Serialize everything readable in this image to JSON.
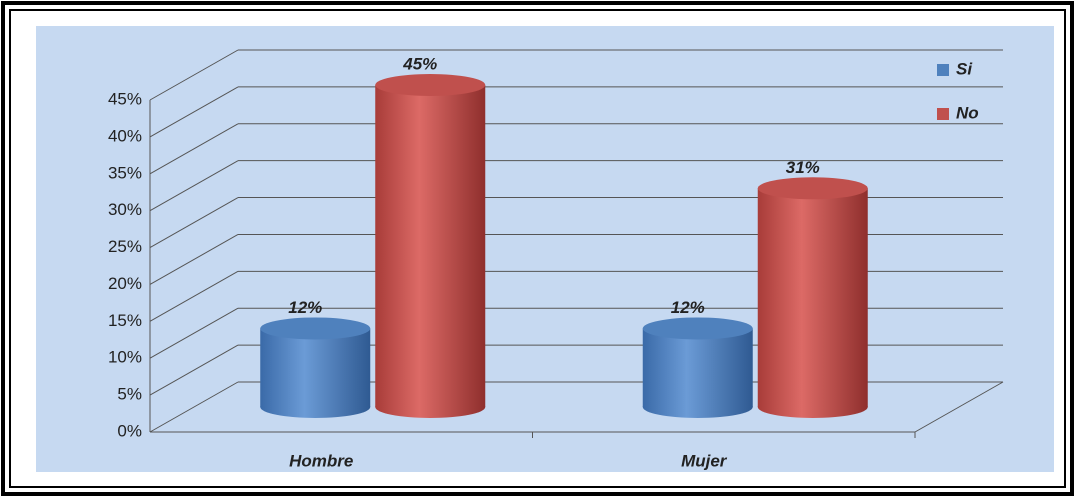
{
  "chart_data": {
    "type": "bar3d",
    "categories": [
      "Hombre",
      "Mujer"
    ],
    "series": [
      {
        "name": "Si",
        "color": "#4f81bd",
        "values": [
          12,
          12
        ],
        "value_labels": [
          "12%",
          "12%"
        ]
      },
      {
        "name": "No",
        "color": "#c0504d",
        "values": [
          45,
          31
        ],
        "value_labels": [
          "45%",
          "31%"
        ]
      }
    ],
    "ylim": [
      0,
      45
    ],
    "yticks": [
      {
        "value": 0,
        "label": "0%"
      },
      {
        "value": 5,
        "label": "5%"
      },
      {
        "value": 10,
        "label": "10%"
      },
      {
        "value": 15,
        "label": "15%"
      },
      {
        "value": 20,
        "label": "20%"
      },
      {
        "value": 25,
        "label": "25%"
      },
      {
        "value": 30,
        "label": "30%"
      },
      {
        "value": 35,
        "label": "35%"
      },
      {
        "value": 40,
        "label": "40%"
      },
      {
        "value": 45,
        "label": "45%"
      }
    ],
    "grid": true,
    "legend": "top-right"
  }
}
